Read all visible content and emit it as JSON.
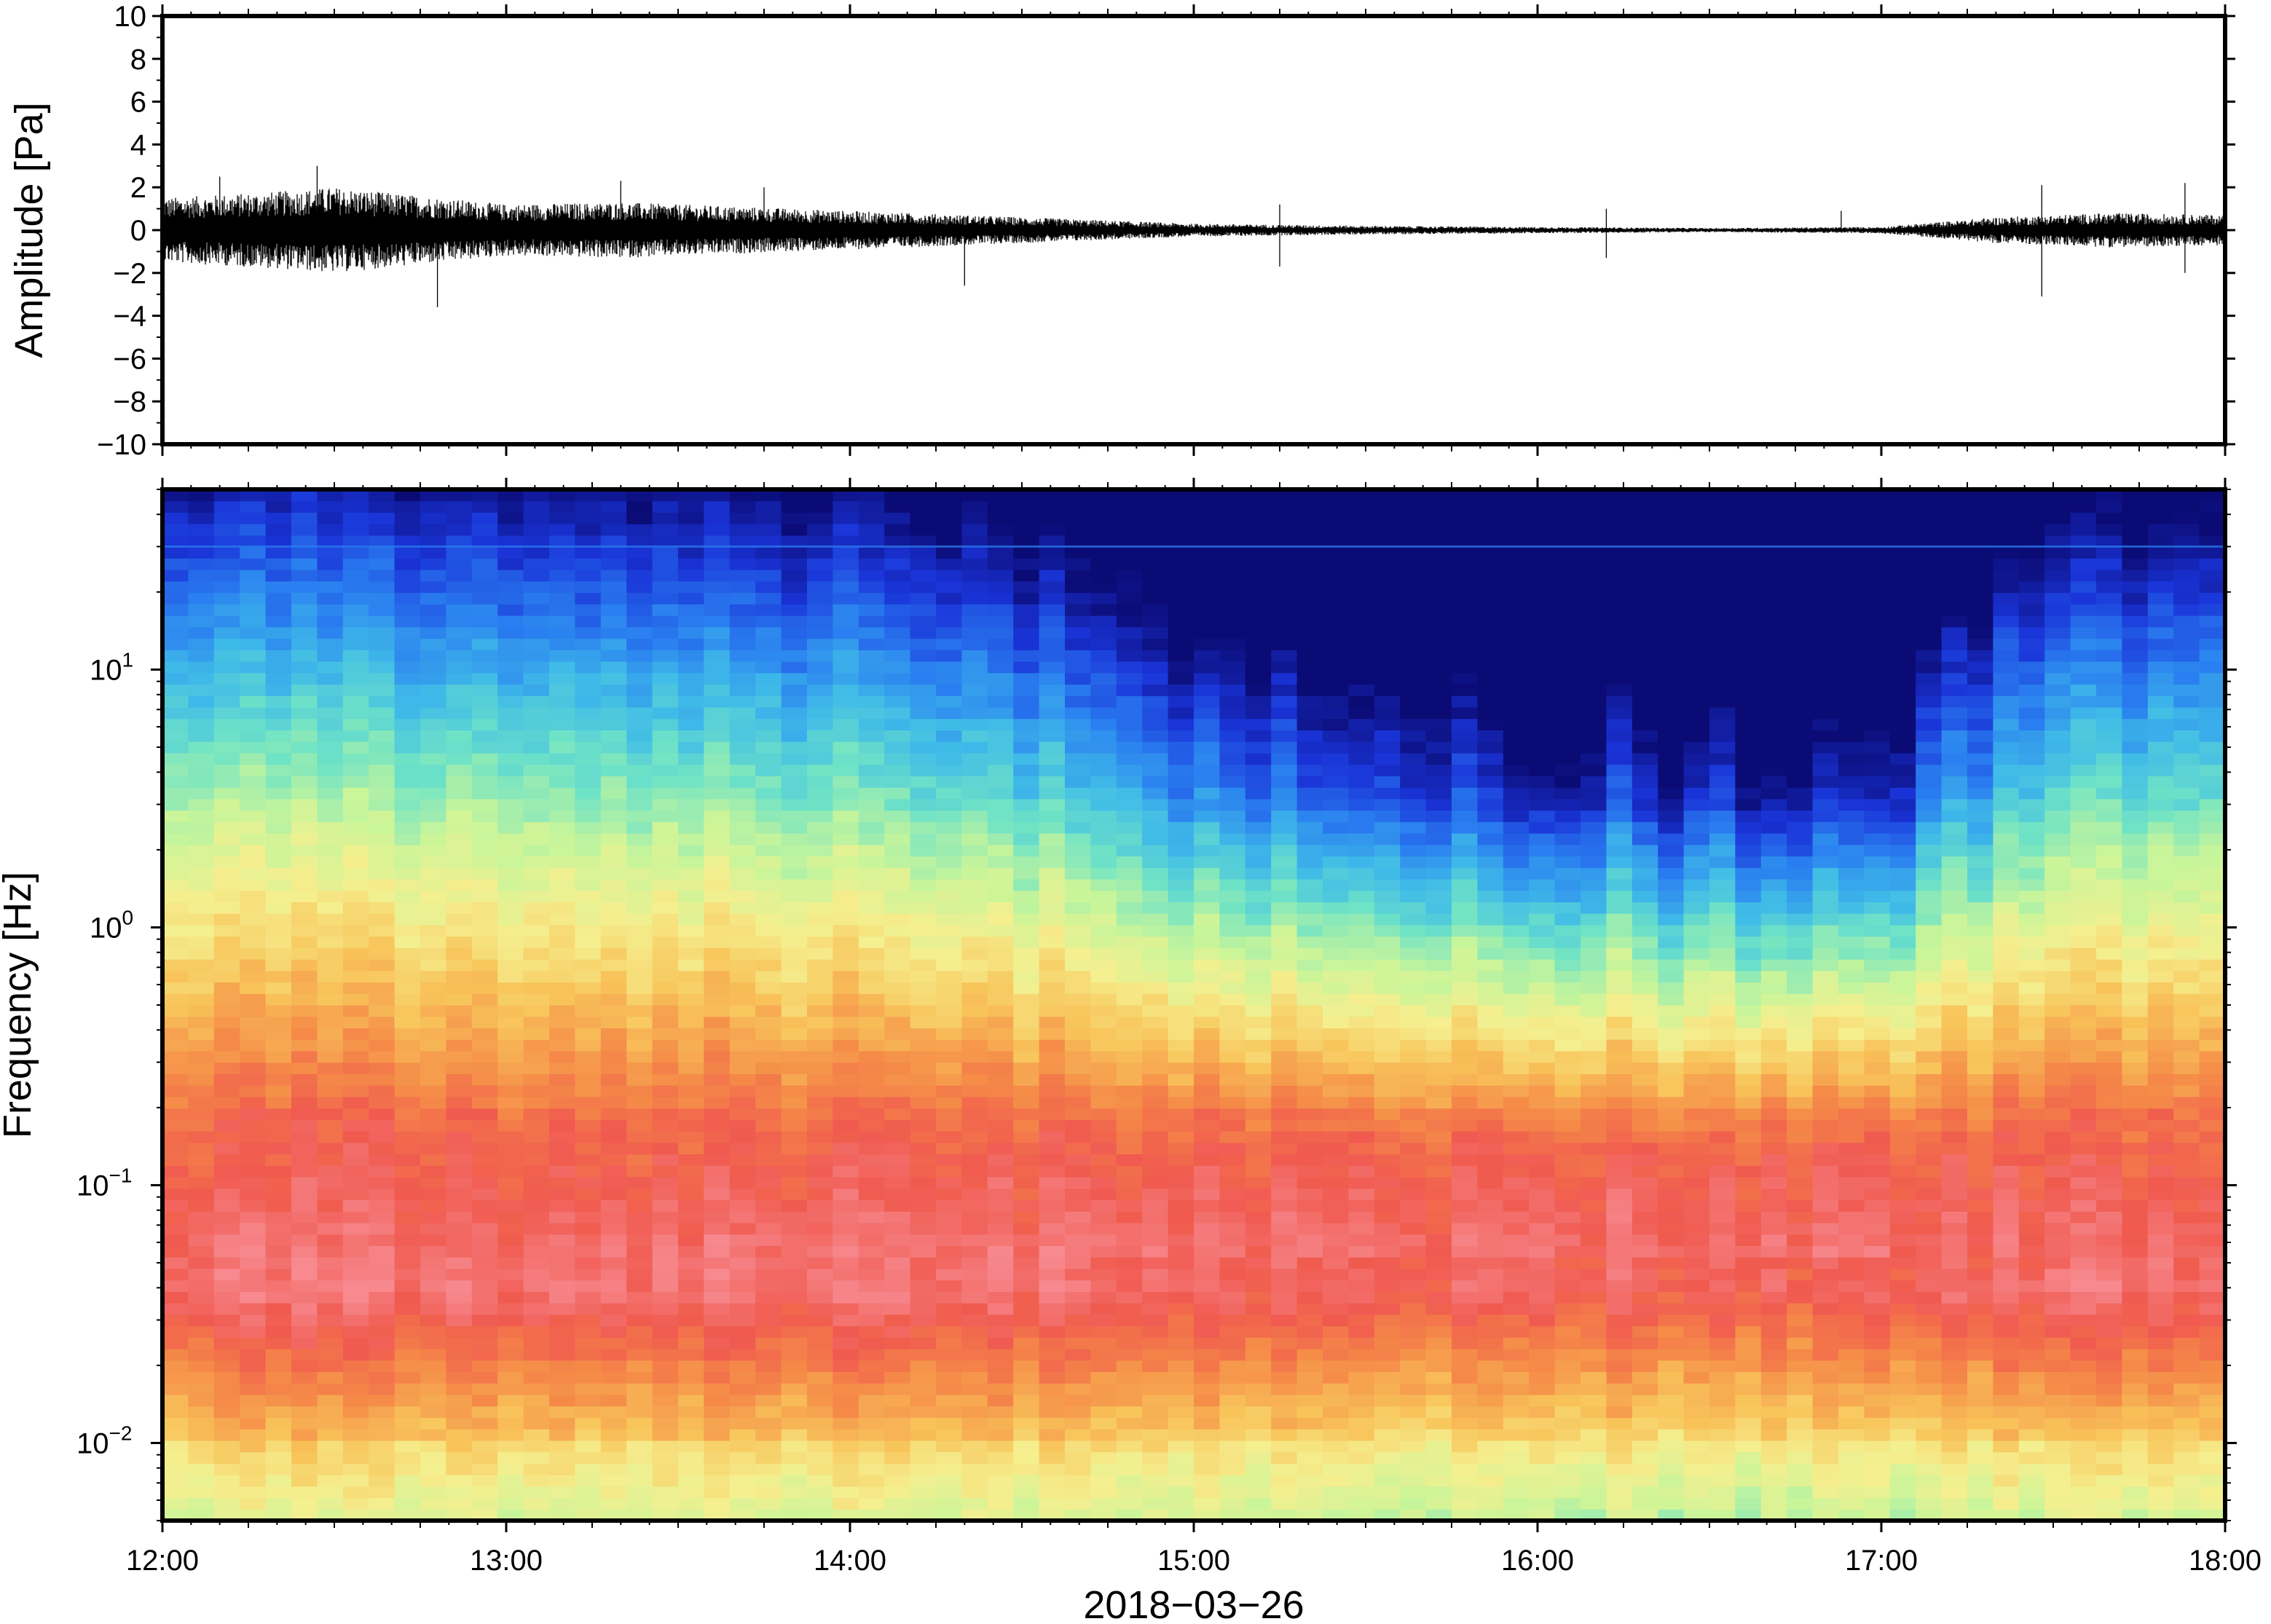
{
  "chart_data": [
    {
      "type": "line",
      "panel": "waveform",
      "title": "",
      "ylabel": "Amplitude [Pa]",
      "xlabel": "",
      "ylim": [
        -10,
        10
      ],
      "yticks": [
        10,
        8,
        6,
        4,
        2,
        0,
        -2,
        -4,
        -6,
        -8,
        -10
      ],
      "ytick_labels": [
        "10",
        "8",
        "6",
        "4",
        "2",
        "0",
        "−2",
        "−4",
        "−6",
        "−8",
        "−10"
      ],
      "x_range_hours": [
        12,
        18
      ],
      "envelope": [
        {
          "t": "12:00",
          "amp": 1.5
        },
        {
          "t": "12:20",
          "amp": 1.8
        },
        {
          "t": "12:30",
          "amp": 2.0
        },
        {
          "t": "12:45",
          "amp": 1.6
        },
        {
          "t": "13:00",
          "amp": 1.2
        },
        {
          "t": "13:20",
          "amp": 1.3
        },
        {
          "t": "13:40",
          "amp": 1.1
        },
        {
          "t": "14:00",
          "amp": 0.9
        },
        {
          "t": "14:30",
          "amp": 0.6
        },
        {
          "t": "15:00",
          "amp": 0.3
        },
        {
          "t": "15:30",
          "amp": 0.2
        },
        {
          "t": "16:00",
          "amp": 0.15
        },
        {
          "t": "16:30",
          "amp": 0.1
        },
        {
          "t": "17:00",
          "amp": 0.15
        },
        {
          "t": "17:20",
          "amp": 0.6
        },
        {
          "t": "17:40",
          "amp": 0.8
        },
        {
          "t": "18:00",
          "amp": 0.7
        }
      ],
      "spikes": [
        {
          "t": "12:10",
          "amp": 2.5
        },
        {
          "t": "12:27",
          "amp": 3.0
        },
        {
          "t": "12:48",
          "amp": -3.6
        },
        {
          "t": "13:20",
          "amp": 2.3
        },
        {
          "t": "13:45",
          "amp": 2.0
        },
        {
          "t": "14:20",
          "amp": -2.6
        },
        {
          "t": "15:15",
          "amp": 1.2
        },
        {
          "t": "15:15",
          "amp": -1.7
        },
        {
          "t": "16:12",
          "amp": 1.0
        },
        {
          "t": "16:12",
          "amp": -1.3
        },
        {
          "t": "16:53",
          "amp": 0.9
        },
        {
          "t": "17:28",
          "amp": 2.1
        },
        {
          "t": "17:28",
          "amp": -3.1
        },
        {
          "t": "17:53",
          "amp": 2.2
        },
        {
          "t": "17:53",
          "amp": -2.0
        }
      ]
    },
    {
      "type": "heatmap",
      "panel": "spectrogram",
      "title": "",
      "ylabel": "Frequency [Hz]",
      "xlabel": "2018−03−26",
      "y_scale": "log",
      "ylim": [
        0.005,
        50
      ],
      "yticks": [
        0.01,
        0.1,
        1,
        10
      ],
      "ytick_labels": [
        {
          "base": "10",
          "exp": "−2"
        },
        {
          "base": "10",
          "exp": "−1"
        },
        {
          "base": "10",
          "exp": "0"
        },
        {
          "base": "10",
          "exp": "1"
        }
      ],
      "xticks": [
        "12:00",
        "13:00",
        "14:00",
        "15:00",
        "16:00",
        "17:00",
        "18:00"
      ],
      "colormap": [
        "#0b0b75",
        "#1a34d8",
        "#2a7ff0",
        "#3fbbe8",
        "#6fe3c6",
        "#c8f59a",
        "#f5ef8f",
        "#f8c45a",
        "#f58b48",
        "#f05a4f",
        "#f7898f"
      ],
      "colormap_note": "",
      "level_profile": {
        "times": [
          "12:00",
          "13:00",
          "14:00",
          "14:30",
          "15:00",
          "15:30",
          "16:00",
          "16:15",
          "16:30",
          "17:00",
          "17:10",
          "17:30",
          "18:00"
        ],
        "quiet_factor": [
          0.0,
          0.05,
          0.15,
          0.3,
          0.6,
          0.85,
          1.0,
          0.9,
          1.0,
          1.0,
          0.6,
          0.25,
          0.2
        ]
      },
      "fixed_line_hz": 30
    }
  ]
}
